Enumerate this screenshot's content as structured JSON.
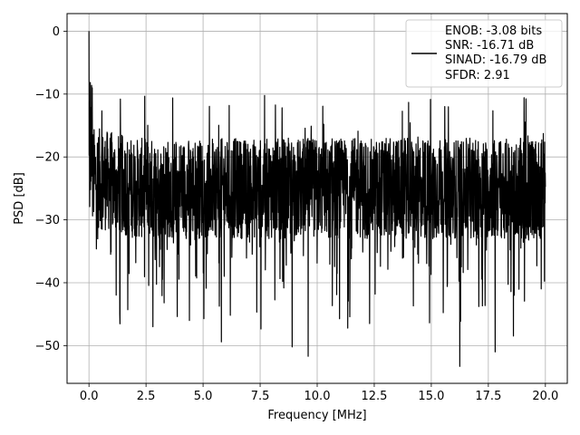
{
  "chart_data": {
    "type": "line",
    "xlabel": "Frequency [MHz]",
    "ylabel": "PSD [dB]",
    "xlim": [
      -0.96,
      20.96
    ],
    "ylim": [
      -56,
      2.8
    ],
    "x_ticks": [
      0.0,
      2.5,
      5.0,
      7.5,
      10.0,
      12.5,
      15.0,
      17.5,
      20.0
    ],
    "x_tick_labels": [
      "0.0",
      "2.5",
      "5.0",
      "7.5",
      "10.0",
      "12.5",
      "15.0",
      "17.5",
      "20.0"
    ],
    "y_ticks": [
      0,
      -10,
      -20,
      -30,
      -40,
      -50
    ],
    "y_tick_labels": [
      "0",
      "−10",
      "−20",
      "−30",
      "−40",
      "−50"
    ],
    "grid": true,
    "legend_position": "top-right",
    "series": [
      {
        "color": "#000000",
        "x_range": [
          0.0,
          20.0
        ],
        "description_values": {
          "peak_at_dc": 0.0,
          "typical_upper_envelope": -14,
          "typical_lower_envelope": -35,
          "minimum": -53.3
        },
        "notable_dips": [
          {
            "x": 1.35,
            "y": -45
          },
          {
            "x": 2.8,
            "y": -47
          },
          {
            "x": 4.4,
            "y": -46
          },
          {
            "x": 5.8,
            "y": -49.4
          },
          {
            "x": 8.9,
            "y": -50.2
          },
          {
            "x": 9.6,
            "y": -51.7
          },
          {
            "x": 16.25,
            "y": -53.3
          },
          {
            "x": 17.8,
            "y": -51
          }
        ]
      }
    ],
    "legend": {
      "lines": [
        "ENOB: -3.08 bits",
        "SNR: -16.71 dB",
        "SINAD: -16.79 dB",
        "SFDR: 2.91"
      ]
    }
  }
}
